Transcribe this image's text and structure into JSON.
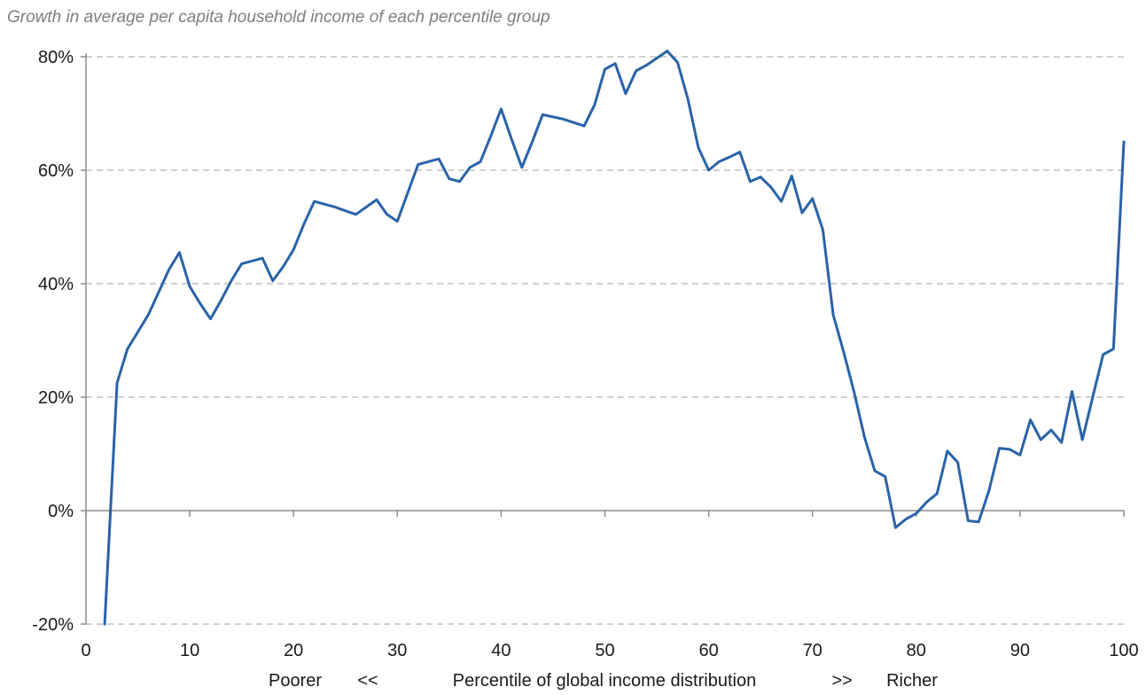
{
  "chart_data": {
    "type": "line",
    "title": "",
    "subtitle": "Growth in average per capita household income of each percentile group",
    "xlabel": {
      "left": "Poorer",
      "left_arrow": "<<",
      "center": "Percentile of global income distribution",
      "right_arrow": ">>",
      "right": "Richer"
    },
    "ylabel": "",
    "xlim": [
      0,
      100
    ],
    "ylim": [
      -20,
      80
    ],
    "x_ticks": [
      0,
      10,
      20,
      30,
      40,
      50,
      60,
      70,
      80,
      90,
      100
    ],
    "x_tick_labels": [
      "0",
      "10",
      "20",
      "30",
      "40",
      "50",
      "60",
      "70",
      "80",
      "90",
      "100"
    ],
    "y_ticks": [
      -20,
      0,
      20,
      40,
      60,
      80
    ],
    "y_tick_labels": [
      "-20%",
      "0%",
      "20%",
      "40%",
      "60%",
      "80%"
    ],
    "grid": "horizontal-dashed",
    "series": [
      {
        "color": "#2a63a8",
        "points": [
          [
            1.8,
            -20
          ],
          [
            3,
            22.5
          ],
          [
            4,
            28.5
          ],
          [
            5,
            31.5
          ],
          [
            6,
            34.5
          ],
          [
            7,
            38.5
          ],
          [
            8,
            42.5
          ],
          [
            9,
            45.5
          ],
          [
            10,
            39.5
          ],
          [
            11,
            36.5
          ],
          [
            12,
            33.8
          ],
          [
            13,
            37
          ],
          [
            14,
            40.5
          ],
          [
            15,
            43.5
          ],
          [
            16,
            44
          ],
          [
            17,
            44.5
          ],
          [
            18,
            40.5
          ],
          [
            19,
            43
          ],
          [
            20,
            46
          ],
          [
            21,
            50.5
          ],
          [
            22,
            54.5
          ],
          [
            24,
            53.5
          ],
          [
            26,
            52.2
          ],
          [
            28,
            54.8
          ],
          [
            29,
            52.2
          ],
          [
            30,
            51
          ],
          [
            31,
            56
          ],
          [
            32,
            61
          ],
          [
            34,
            62
          ],
          [
            35,
            58.5
          ],
          [
            36,
            58
          ],
          [
            37,
            60.5
          ],
          [
            38,
            61.5
          ],
          [
            39,
            66
          ],
          [
            40,
            70.8
          ],
          [
            41,
            65.5
          ],
          [
            42,
            60.5
          ],
          [
            43,
            65
          ],
          [
            44,
            69.8
          ],
          [
            46,
            69
          ],
          [
            48,
            67.8
          ],
          [
            49,
            71.5
          ],
          [
            50,
            77.8
          ],
          [
            51,
            78.8
          ],
          [
            52,
            73.5
          ],
          [
            53,
            77.5
          ],
          [
            54,
            78.5
          ],
          [
            56,
            81
          ],
          [
            57,
            79
          ],
          [
            58,
            72.5
          ],
          [
            59,
            64
          ],
          [
            60,
            60
          ],
          [
            61,
            61.5
          ],
          [
            62,
            62.3
          ],
          [
            63,
            63.2
          ],
          [
            64,
            58
          ],
          [
            65,
            58.8
          ],
          [
            66,
            57
          ],
          [
            67,
            54.5
          ],
          [
            68,
            59
          ],
          [
            69,
            52.5
          ],
          [
            70,
            55
          ],
          [
            71,
            49.5
          ],
          [
            72,
            34.5
          ],
          [
            73,
            28
          ],
          [
            74,
            21
          ],
          [
            75,
            13
          ],
          [
            76,
            7
          ],
          [
            77,
            6
          ],
          [
            78,
            -3
          ],
          [
            79,
            -1.5
          ],
          [
            80,
            -0.5
          ],
          [
            81,
            1.5
          ],
          [
            82,
            3
          ],
          [
            83,
            10.5
          ],
          [
            84,
            8.5
          ],
          [
            85,
            -1.8
          ],
          [
            86,
            -2
          ],
          [
            87,
            3.5
          ],
          [
            88,
            11
          ],
          [
            89,
            10.8
          ],
          [
            90,
            9.8
          ],
          [
            91,
            16
          ],
          [
            92,
            12.5
          ],
          [
            93,
            14.2
          ],
          [
            94,
            12
          ],
          [
            95,
            21
          ],
          [
            96,
            12.5
          ],
          [
            97,
            20
          ],
          [
            98,
            27.5
          ],
          [
            99,
            28.5
          ],
          [
            100,
            65
          ]
        ]
      }
    ]
  }
}
